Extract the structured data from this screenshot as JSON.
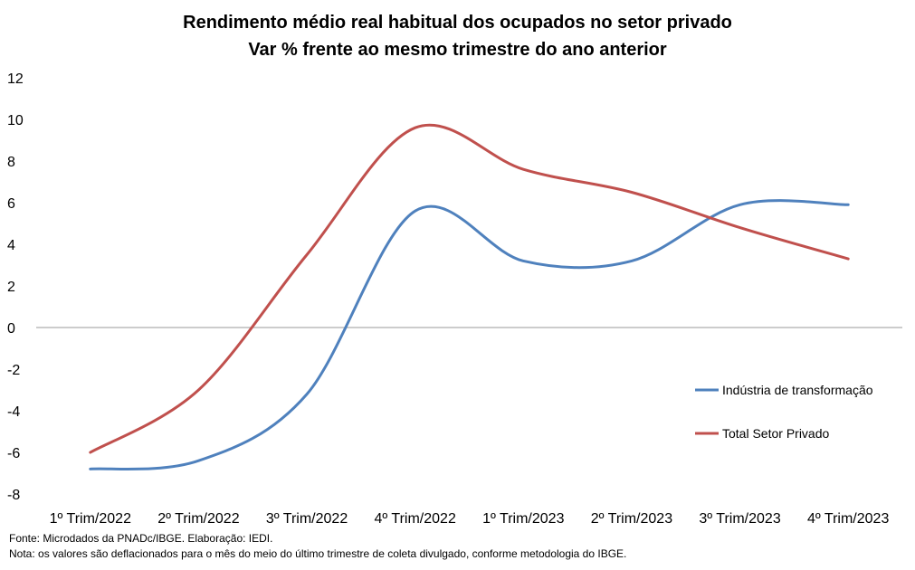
{
  "chart_data": {
    "type": "line",
    "title": "Rendimento médio real habitual dos ocupados no setor privado",
    "subtitle": "Var %  frente ao mesmo trimestre do ano anterior",
    "categories": [
      "1º Trim/2022",
      "2º Trim/2022",
      "3º Trim/2022",
      "4º Trim/2022",
      "1º Trim/2023",
      "2º Trim/2023",
      "3º Trim/2023",
      "4º Trim/2023"
    ],
    "ylim": [
      -8,
      12
    ],
    "yticks": [
      -8,
      -6,
      -4,
      -2,
      0,
      2,
      4,
      6,
      8,
      10,
      12
    ],
    "legend_position": "right",
    "series": [
      {
        "name": "Indústria de transformação",
        "color": "#4f81bd",
        "values": [
          -6.8,
          -6.4,
          -3.2,
          5.6,
          3.2,
          3.2,
          5.9,
          5.9
        ]
      },
      {
        "name": "Total Setor Privado",
        "color": "#c0504d",
        "values": [
          -6.0,
          -3.0,
          3.5,
          9.6,
          7.6,
          6.5,
          4.8,
          3.3
        ]
      }
    ]
  },
  "footer": {
    "source": "Fonte: Microdados da PNADc/IBGE. Elaboração: IEDI.",
    "note": "Nota: os valores são deflacionados para o mês do meio do último trimestre de coleta divulgado, conforme metodologia do IBGE."
  }
}
